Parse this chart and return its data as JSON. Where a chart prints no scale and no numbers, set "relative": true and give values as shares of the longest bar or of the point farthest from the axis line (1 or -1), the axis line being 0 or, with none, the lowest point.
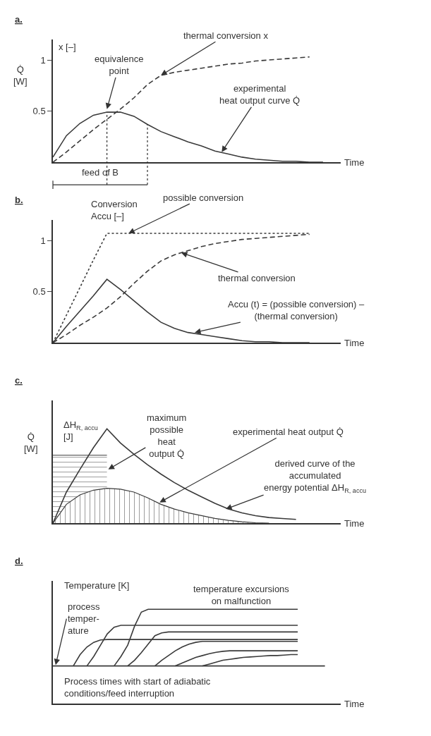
{
  "chart_data": [
    {
      "type": "line",
      "title": "a.",
      "xlabel": "Time",
      "ylabel": "Q̇\n[W]",
      "y2label": "x [–]",
      "categories": [
        null,
        null,
        null,
        null,
        null,
        null,
        null,
        null,
        null,
        null,
        null,
        null,
        null,
        null,
        null,
        null,
        null,
        null,
        null,
        null,
        null,
        null
      ],
      "ylim": [
        0,
        1.2
      ],
      "yticks": [
        0.5,
        1
      ],
      "marker": "none",
      "series": [
        {
          "color": "#3a3a3a",
          "line_style": "solid",
          "values": [
            0.05,
            0.26,
            0.38,
            0.46,
            0.49,
            0.49,
            0.45,
            0.37,
            0.3,
            0.25,
            0.2,
            0.16,
            0.11,
            0.08,
            0.05,
            0.03,
            0.02,
            0.01,
            0.01,
            0,
            0,
            null
          ]
        },
        {
          "color": "#3a3a3a",
          "line_style": "dashed",
          "values": [
            0,
            0.1,
            0.21,
            0.32,
            0.42,
            0.52,
            0.63,
            0.76,
            0.85,
            0.88,
            0.9,
            0.92,
            0.94,
            0.96,
            0.97,
            0.99,
            1.0,
            1.01,
            1.02,
            1.03,
            null,
            null
          ]
        }
      ],
      "annotations": [
        "thermal conversion x",
        "equivalence\npoint",
        "experimental\nheat output curve Q̇",
        "feed of B"
      ]
    },
    {
      "type": "line",
      "title": "b.",
      "xlabel": "Time",
      "ylabel": "Conversion\nAccu [–]",
      "categories": [
        null,
        null,
        null,
        null,
        null,
        null,
        null,
        null,
        null,
        null,
        null,
        null,
        null,
        null,
        null,
        null,
        null,
        null,
        null,
        null,
        null,
        null
      ],
      "ylim": [
        0,
        1.2
      ],
      "yticks": [
        0.5,
        1
      ],
      "marker": "none",
      "series": [
        {
          "color": "#3a3a3a",
          "line_style": "dotted",
          "values": [
            0,
            0.27,
            0.54,
            0.81,
            1.07,
            1.07,
            1.07,
            1.07,
            1.07,
            1.07,
            1.07,
            1.07,
            1.07,
            1.07,
            1.07,
            1.07,
            1.07,
            1.07,
            1.07,
            1.07,
            null,
            null
          ]
        },
        {
          "color": "#3a3a3a",
          "line_style": "dashed",
          "values": [
            0,
            0.08,
            0.17,
            0.25,
            0.34,
            0.45,
            0.58,
            0.7,
            0.8,
            0.86,
            0.9,
            0.94,
            0.97,
            0.99,
            1.01,
            1.02,
            1.03,
            1.04,
            1.05,
            1.06,
            null,
            null
          ]
        },
        {
          "color": "#3a3a3a",
          "line_style": "solid",
          "values": [
            0,
            0.16,
            0.31,
            0.46,
            0.62,
            0.52,
            0.41,
            0.3,
            0.2,
            0.14,
            0.1,
            0.08,
            0.06,
            0.04,
            0.02,
            0.01,
            0.01,
            0,
            0,
            0,
            null,
            null
          ]
        }
      ],
      "annotations": [
        "possible conversion",
        "thermal conversion",
        "Accu (t) = (possible conversion) –\n(thermal conversion)"
      ]
    },
    {
      "type": "line",
      "title": "c.",
      "xlabel": "Time",
      "ylabel": "Q̇\n[W]",
      "y2label": "ΔH$_{R, accu}$\n[J]",
      "relative": true,
      "categories": [
        null,
        null,
        null,
        null,
        null,
        null,
        null,
        null,
        null,
        null,
        null,
        null,
        null,
        null,
        null,
        null,
        null,
        null,
        null,
        null,
        null,
        null
      ],
      "marker": "none",
      "series": [
        {
          "type": "area",
          "color": "#3a3a3a",
          "line_style": "solid",
          "values": [
            0.72,
            0.72,
            0.72,
            0.72,
            0.72,
            null,
            null,
            null,
            null,
            null,
            null,
            null,
            null,
            null,
            null,
            null,
            null,
            null,
            null,
            null,
            null,
            null
          ]
        },
        {
          "type": "area",
          "color": "#3a3a3a",
          "line_style": "solid",
          "values": [
            0,
            0.2,
            0.3,
            0.35,
            0.37,
            0.36,
            0.33,
            0.27,
            0.2,
            0.15,
            0.11,
            0.08,
            0.05,
            0.03,
            0.015,
            0.005,
            0,
            null,
            null,
            null,
            null,
            null
          ]
        },
        {
          "color": "#3a3a3a",
          "line_style": "solid",
          "values": [
            0,
            0.33,
            0.57,
            0.8,
            1.0,
            0.85,
            0.73,
            0.62,
            0.52,
            0.43,
            0.35,
            0.28,
            0.21,
            0.15,
            0.11,
            0.08,
            0.06,
            0.05,
            0.04,
            null,
            null,
            null
          ]
        }
      ],
      "annotations": [
        "maximum\npossible\nheat\noutput Q̇",
        "experimental heat output Q̇",
        "derived curve of the\naccumulated\nenergy potential ΔH$_{R, accu}$"
      ]
    },
    {
      "type": "line",
      "title": "d.",
      "xlabel": "Time",
      "ylabel": "Temperature [K]",
      "relative": true,
      "categories": [
        null,
        null,
        null,
        null,
        null,
        null,
        null,
        null,
        null,
        null,
        null,
        null,
        null,
        null,
        null,
        null,
        null,
        null,
        null,
        null,
        null,
        null,
        null,
        null,
        null,
        null,
        null,
        null,
        null,
        null,
        null,
        null,
        null,
        null,
        null,
        null,
        null,
        null,
        null,
        null,
        null,
        null,
        null
      ],
      "marker": "none",
      "series": [
        {
          "color": "#3a3a3a",
          "line_style": "solid",
          "values": [
            0.4,
            0.4,
            0.4,
            0.4,
            0.4,
            0.4,
            0.4,
            0.4,
            0.4,
            0.4,
            0.4,
            0.4,
            0.4,
            0.4,
            0.4,
            0.4,
            0.4,
            0.4,
            0.4,
            0.4,
            0.4,
            0.4,
            0.4,
            0.4,
            0.4,
            0.4,
            0.4,
            0.4,
            0.4,
            0.4,
            0.4,
            0.4,
            0.4,
            0.4,
            0.4,
            0.4,
            0.4,
            0.4,
            0.4,
            0.4,
            0.4,
            null,
            null
          ]
        },
        {
          "color": "#3a3a3a",
          "line_style": "solid",
          "values": [
            null,
            null,
            null,
            0.4,
            0.52,
            0.6,
            0.65,
            0.675,
            0.68,
            0.68,
            0.68,
            0.68,
            0.68,
            0.68,
            0.68,
            0.68,
            0.68,
            0.68,
            0.68,
            0.68,
            0.68,
            0.68,
            0.68,
            0.68,
            0.68,
            0.68,
            0.68,
            0.68,
            0.68,
            0.68,
            0.68,
            0.68,
            0.68,
            0.68,
            0.68,
            0.68,
            0.68,
            null,
            null,
            null,
            null,
            null,
            null
          ]
        },
        {
          "color": "#3a3a3a",
          "line_style": "solid",
          "values": [
            null,
            null,
            null,
            null,
            null,
            0.4,
            0.5,
            0.62,
            0.74,
            0.81,
            0.83,
            0.83,
            0.83,
            0.83,
            0.83,
            0.83,
            0.83,
            0.83,
            0.83,
            0.83,
            0.83,
            0.83,
            0.83,
            0.83,
            0.83,
            0.83,
            0.83,
            0.83,
            0.83,
            0.83,
            0.83,
            0.83,
            0.83,
            0.83,
            0.83,
            0.83,
            0.83,
            null,
            null,
            null,
            null,
            null,
            null
          ]
        },
        {
          "color": "#3a3a3a",
          "line_style": "solid",
          "values": [
            null,
            null,
            null,
            null,
            null,
            null,
            null,
            null,
            null,
            0.4,
            0.5,
            0.62,
            0.82,
            0.97,
            1.0,
            1.0,
            1.0,
            1.0,
            1.0,
            1.0,
            1.0,
            1.0,
            1.0,
            1.0,
            1.0,
            1.0,
            1.0,
            1.0,
            1.0,
            1.0,
            1.0,
            1.0,
            1.0,
            1.0,
            1.0,
            1.0,
            1.0,
            null,
            null,
            null,
            null,
            null,
            null
          ]
        },
        {
          "color": "#3a3a3a",
          "line_style": "solid",
          "values": [
            null,
            null,
            null,
            null,
            null,
            null,
            null,
            null,
            null,
            null,
            null,
            0.4,
            0.46,
            0.54,
            0.63,
            0.72,
            0.75,
            0.76,
            0.76,
            0.76,
            0.76,
            0.76,
            0.76,
            0.76,
            0.76,
            0.76,
            0.76,
            0.76,
            0.76,
            0.76,
            0.76,
            0.76,
            0.76,
            0.76,
            0.76,
            0.76,
            0.76,
            null,
            null,
            null,
            null,
            null,
            null
          ]
        },
        {
          "color": "#3a3a3a",
          "line_style": "solid",
          "values": [
            null,
            null,
            null,
            null,
            null,
            null,
            null,
            null,
            null,
            null,
            null,
            null,
            null,
            null,
            null,
            0.4,
            0.46,
            0.51,
            0.56,
            0.6,
            0.63,
            0.65,
            0.66,
            0.66,
            0.66,
            0.66,
            0.66,
            0.66,
            0.66,
            0.66,
            0.66,
            0.66,
            0.66,
            0.66,
            0.66,
            0.66,
            0.66,
            null,
            null,
            null,
            null,
            null,
            null
          ]
        },
        {
          "color": "#3a3a3a",
          "line_style": "solid",
          "values": [
            null,
            null,
            null,
            null,
            null,
            null,
            null,
            null,
            null,
            null,
            null,
            null,
            null,
            null,
            null,
            null,
            null,
            null,
            0.4,
            0.43,
            0.46,
            0.49,
            0.51,
            0.53,
            0.545,
            0.555,
            0.56,
            0.56,
            0.56,
            0.56,
            0.56,
            0.56,
            0.56,
            0.56,
            0.56,
            0.56,
            0.56,
            null,
            null,
            null,
            null,
            null,
            null
          ]
        },
        {
          "color": "#3a3a3a",
          "line_style": "solid",
          "values": [
            null,
            null,
            null,
            null,
            null,
            null,
            null,
            null,
            null,
            null,
            null,
            null,
            null,
            null,
            null,
            null,
            null,
            null,
            null,
            null,
            null,
            null,
            0.4,
            0.42,
            0.44,
            0.46,
            0.47,
            0.48,
            0.49,
            0.495,
            0.5,
            0.505,
            0.51,
            0.51,
            0.515,
            0.52,
            0.52,
            null,
            null,
            null,
            null,
            null,
            null
          ]
        }
      ],
      "annotations": [
        "process\ntemper-\nature",
        "temperature excursions\non malfunction",
        "Process times with start of adiabatic\nconditions/feed interruption"
      ]
    }
  ]
}
